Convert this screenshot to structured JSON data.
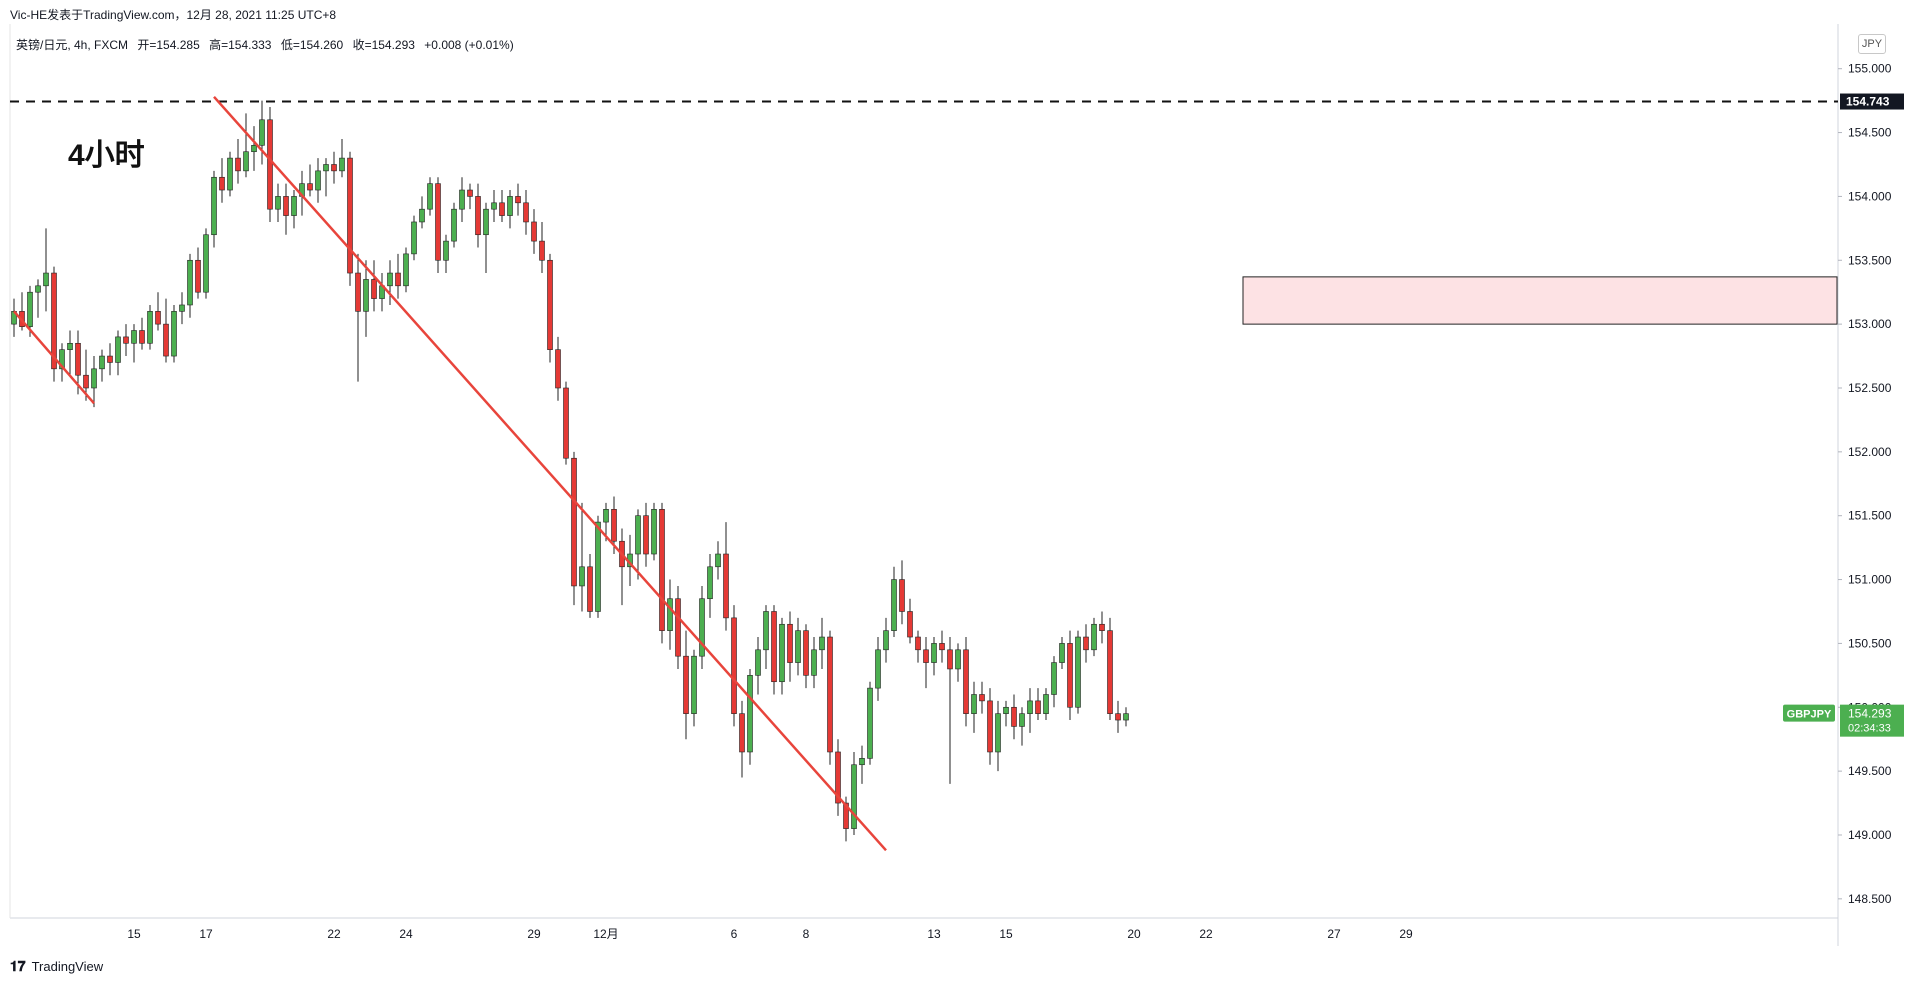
{
  "header": {
    "published_by": "Vic-HE发表于TradingView.com，12月 28, 2021 11:25 UTC+8",
    "ohlc": {
      "symbol": "英镑/日元, 4h, FXCM",
      "open": "开=154.285",
      "high": "高=154.333",
      "low": "低=154.260",
      "close": "收=154.293",
      "change": "+0.008 (+0.01%)"
    }
  },
  "annotation": {
    "timeframe_label": "4小时"
  },
  "price_scale": {
    "currency": "JPY"
  },
  "markers": {
    "level_label": "154.743",
    "symbol_label": "GBPJPY",
    "price_label": "154.293",
    "countdown": "02:34:33"
  },
  "colors": {
    "up": "#26a69a",
    "up_body": "#4caf50",
    "down": "#e53935",
    "trendline": "#e8453c",
    "zone_fill": "#fde2e4",
    "price_tag": "#4caf50",
    "level_tag": "#131722",
    "grid": "#f0f3fa"
  },
  "footer": {
    "brand": "TradingView",
    "logo_icon": "tradingview-logo-icon"
  },
  "chart_data": {
    "type": "candlestick",
    "ylim": [
      148.35,
      155.35
    ],
    "yticks": [
      "155.000",
      "154.500",
      "154.000",
      "153.500",
      "153.000",
      "152.500",
      "152.000",
      "151.500",
      "151.000",
      "150.500",
      "150.000",
      "149.500",
      "149.000",
      "148.500"
    ],
    "xticks": [
      {
        "label": "15",
        "bar": 15
      },
      {
        "label": "17",
        "bar": 24
      },
      {
        "label": "22",
        "bar": 40
      },
      {
        "label": "24",
        "bar": 49
      },
      {
        "label": "29",
        "bar": 65
      },
      {
        "label": "12月",
        "bar": 74
      },
      {
        "label": "6",
        "bar": 90
      },
      {
        "label": "8",
        "bar": 99
      },
      {
        "label": "13",
        "bar": 115
      },
      {
        "label": "15",
        "bar": 124
      },
      {
        "label": "20",
        "bar": 140
      },
      {
        "label": "22",
        "bar": 149
      },
      {
        "label": "27",
        "bar": 165
      },
      {
        "label": "29",
        "bar": 174
      }
    ],
    "horizontal_level": 154.743,
    "zone": {
      "low": 153.0,
      "high": 153.37,
      "from_bar": 154,
      "to_bar": 179
    },
    "trendlines": [
      {
        "bar1": 0,
        "price1": 153.1,
        "bar2": 10,
        "price2": 152.38
      },
      {
        "bar1": 25,
        "price1": 154.78,
        "bar2": 109,
        "price2": 148.88
      }
    ],
    "candles": [
      [
        153.0,
        153.2,
        152.9,
        153.1
      ],
      [
        153.1,
        153.25,
        152.95,
        152.98
      ],
      [
        152.98,
        153.3,
        152.9,
        153.25
      ],
      [
        153.25,
        153.35,
        153.05,
        153.3
      ],
      [
        153.3,
        153.75,
        153.1,
        153.4
      ],
      [
        153.4,
        153.45,
        152.55,
        152.65
      ],
      [
        152.65,
        152.85,
        152.55,
        152.8
      ],
      [
        152.8,
        152.95,
        152.6,
        152.85
      ],
      [
        152.85,
        152.95,
        152.45,
        152.6
      ],
      [
        152.6,
        152.8,
        152.4,
        152.5
      ],
      [
        152.5,
        152.75,
        152.35,
        152.65
      ],
      [
        152.65,
        152.8,
        152.55,
        152.75
      ],
      [
        152.75,
        152.85,
        152.6,
        152.7
      ],
      [
        152.7,
        152.95,
        152.6,
        152.9
      ],
      [
        152.9,
        153.0,
        152.75,
        152.85
      ],
      [
        152.85,
        153.0,
        152.7,
        152.95
      ],
      [
        152.95,
        153.05,
        152.8,
        152.85
      ],
      [
        152.85,
        153.15,
        152.8,
        153.1
      ],
      [
        153.1,
        153.25,
        152.95,
        153.0
      ],
      [
        153.0,
        153.2,
        152.7,
        152.75
      ],
      [
        152.75,
        153.15,
        152.7,
        153.1
      ],
      [
        153.1,
        153.25,
        153.0,
        153.15
      ],
      [
        153.15,
        153.55,
        153.05,
        153.5
      ],
      [
        153.5,
        153.6,
        153.2,
        153.25
      ],
      [
        153.25,
        153.75,
        153.2,
        153.7
      ],
      [
        153.7,
        154.2,
        153.6,
        154.15
      ],
      [
        154.15,
        154.3,
        153.95,
        154.05
      ],
      [
        154.05,
        154.35,
        154.0,
        154.3
      ],
      [
        154.3,
        154.45,
        154.1,
        154.2
      ],
      [
        154.2,
        154.65,
        154.15,
        154.35
      ],
      [
        154.35,
        154.55,
        154.2,
        154.4
      ],
      [
        154.4,
        154.75,
        154.25,
        154.6
      ],
      [
        154.6,
        154.7,
        153.8,
        153.9
      ],
      [
        153.9,
        154.1,
        153.8,
        154.0
      ],
      [
        154.0,
        154.1,
        153.7,
        153.85
      ],
      [
        153.85,
        154.05,
        153.75,
        154.0
      ],
      [
        154.0,
        154.2,
        153.85,
        154.1
      ],
      [
        154.1,
        154.25,
        154.0,
        154.05
      ],
      [
        154.05,
        154.3,
        153.95,
        154.2
      ],
      [
        154.2,
        154.3,
        154.0,
        154.25
      ],
      [
        154.25,
        154.35,
        154.1,
        154.2
      ],
      [
        154.2,
        154.45,
        154.15,
        154.3
      ],
      [
        154.3,
        154.35,
        153.3,
        153.4
      ],
      [
        153.4,
        153.55,
        152.55,
        153.1
      ],
      [
        153.1,
        153.5,
        152.9,
        153.35
      ],
      [
        153.35,
        153.5,
        153.1,
        153.2
      ],
      [
        153.2,
        153.4,
        153.1,
        153.3
      ],
      [
        153.3,
        153.5,
        153.15,
        153.4
      ],
      [
        153.4,
        153.55,
        153.2,
        153.3
      ],
      [
        153.3,
        153.6,
        153.25,
        153.55
      ],
      [
        153.55,
        153.85,
        153.5,
        153.8
      ],
      [
        153.8,
        154.0,
        153.75,
        153.9
      ],
      [
        153.9,
        154.15,
        153.85,
        154.1
      ],
      [
        154.1,
        154.15,
        153.4,
        153.5
      ],
      [
        153.5,
        153.7,
        153.4,
        153.65
      ],
      [
        153.65,
        153.95,
        153.6,
        153.9
      ],
      [
        153.9,
        154.15,
        153.8,
        154.05
      ],
      [
        154.05,
        154.1,
        153.9,
        154.0
      ],
      [
        154.0,
        154.1,
        153.6,
        153.7
      ],
      [
        153.7,
        153.95,
        153.4,
        153.9
      ],
      [
        153.9,
        154.05,
        153.8,
        153.95
      ],
      [
        153.95,
        154.05,
        153.8,
        153.85
      ],
      [
        153.85,
        154.05,
        153.75,
        154.0
      ],
      [
        154.0,
        154.1,
        153.85,
        153.95
      ],
      [
        153.95,
        154.05,
        153.7,
        153.8
      ],
      [
        153.8,
        153.9,
        153.55,
        153.65
      ],
      [
        153.65,
        153.8,
        153.4,
        153.5
      ],
      [
        153.5,
        153.55,
        152.7,
        152.8
      ],
      [
        152.8,
        152.9,
        152.4,
        152.5
      ],
      [
        152.5,
        152.55,
        151.9,
        151.95
      ],
      [
        151.95,
        152.0,
        150.8,
        150.95
      ],
      [
        150.95,
        151.6,
        150.75,
        151.1
      ],
      [
        151.1,
        151.2,
        150.7,
        150.75
      ],
      [
        150.75,
        151.5,
        150.7,
        151.45
      ],
      [
        151.45,
        151.6,
        151.3,
        151.55
      ],
      [
        151.55,
        151.65,
        151.2,
        151.3
      ],
      [
        151.3,
        151.4,
        150.8,
        151.1
      ],
      [
        151.1,
        151.35,
        150.95,
        151.2
      ],
      [
        151.2,
        151.55,
        151.0,
        151.5
      ],
      [
        151.5,
        151.6,
        151.1,
        151.2
      ],
      [
        151.2,
        151.6,
        151.15,
        151.55
      ],
      [
        151.55,
        151.6,
        150.5,
        150.6
      ],
      [
        150.6,
        151.0,
        150.45,
        150.85
      ],
      [
        150.85,
        150.95,
        150.3,
        150.4
      ],
      [
        150.4,
        150.6,
        149.75,
        149.95
      ],
      [
        149.95,
        150.45,
        149.85,
        150.4
      ],
      [
        150.4,
        150.95,
        150.3,
        150.85
      ],
      [
        150.85,
        151.2,
        150.7,
        151.1
      ],
      [
        151.1,
        151.3,
        151.0,
        151.2
      ],
      [
        151.2,
        151.45,
        150.6,
        150.7
      ],
      [
        150.7,
        150.8,
        149.85,
        149.95
      ],
      [
        149.95,
        150.05,
        149.45,
        149.65
      ],
      [
        149.65,
        150.3,
        149.55,
        150.25
      ],
      [
        150.25,
        150.55,
        150.1,
        150.45
      ],
      [
        150.45,
        150.8,
        150.3,
        150.75
      ],
      [
        150.75,
        150.8,
        150.1,
        150.2
      ],
      [
        150.2,
        150.7,
        150.1,
        150.65
      ],
      [
        150.65,
        150.75,
        150.2,
        150.35
      ],
      [
        150.35,
        150.7,
        150.25,
        150.6
      ],
      [
        150.6,
        150.65,
        150.15,
        150.25
      ],
      [
        150.25,
        150.55,
        150.15,
        150.45
      ],
      [
        150.45,
        150.7,
        150.3,
        150.55
      ],
      [
        150.55,
        150.6,
        149.55,
        149.65
      ],
      [
        149.65,
        149.75,
        149.15,
        149.25
      ],
      [
        149.25,
        149.3,
        148.95,
        149.05
      ],
      [
        149.05,
        149.65,
        149.0,
        149.55
      ],
      [
        149.55,
        149.7,
        149.4,
        149.6
      ],
      [
        149.6,
        150.2,
        149.55,
        150.15
      ],
      [
        150.15,
        150.55,
        150.05,
        150.45
      ],
      [
        150.45,
        150.7,
        150.35,
        150.6
      ],
      [
        150.6,
        151.1,
        150.55,
        151.0
      ],
      [
        151.0,
        151.15,
        150.65,
        150.75
      ],
      [
        150.75,
        150.85,
        150.5,
        150.55
      ],
      [
        150.55,
        150.6,
        150.35,
        150.45
      ],
      [
        150.45,
        150.55,
        150.15,
        150.35
      ],
      [
        150.35,
        150.55,
        150.25,
        150.5
      ],
      [
        150.5,
        150.6,
        150.35,
        150.45
      ],
      [
        150.45,
        150.55,
        149.4,
        150.3
      ],
      [
        150.3,
        150.5,
        150.2,
        150.45
      ],
      [
        150.45,
        150.55,
        149.85,
        149.95
      ],
      [
        149.95,
        150.2,
        149.8,
        150.1
      ],
      [
        150.1,
        150.2,
        149.95,
        150.05
      ],
      [
        150.05,
        150.15,
        149.55,
        149.65
      ],
      [
        149.65,
        150.05,
        149.5,
        149.95
      ],
      [
        149.95,
        150.05,
        149.85,
        150.0
      ],
      [
        150.0,
        150.1,
        149.75,
        149.85
      ],
      [
        149.85,
        150.0,
        149.7,
        149.95
      ],
      [
        149.95,
        150.15,
        149.8,
        150.05
      ],
      [
        150.05,
        150.15,
        149.9,
        149.95
      ],
      [
        149.95,
        150.15,
        149.9,
        150.1
      ],
      [
        150.1,
        150.4,
        150.0,
        150.35
      ],
      [
        150.35,
        150.55,
        150.3,
        150.5
      ],
      [
        150.5,
        150.6,
        149.9,
        150.0
      ],
      [
        150.0,
        150.6,
        149.95,
        150.55
      ],
      [
        150.55,
        150.65,
        150.35,
        150.45
      ],
      [
        150.45,
        150.7,
        150.4,
        150.65
      ],
      [
        150.65,
        150.75,
        150.5,
        150.6
      ],
      [
        150.6,
        150.7,
        149.9,
        149.95
      ],
      [
        149.95,
        150.05,
        149.8,
        149.9
      ],
      [
        149.9,
        150.0,
        149.85,
        149.95
      ]
    ]
  }
}
